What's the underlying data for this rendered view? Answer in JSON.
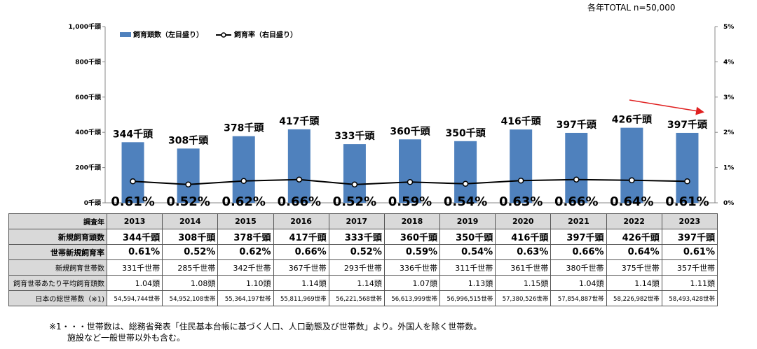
{
  "total_label": "各年TOTAL n=50,000",
  "chart_data": {
    "type": "bar",
    "categories": [
      "2013",
      "2014",
      "2015",
      "2016",
      "2017",
      "2018",
      "2019",
      "2020",
      "2021",
      "2022",
      "2023"
    ],
    "series": [
      {
        "name": "飼育頭数（左目盛り）",
        "type": "bar",
        "axis": "left",
        "values": [
          344,
          308,
          378,
          417,
          333,
          360,
          350,
          416,
          397,
          426,
          397
        ],
        "labels": [
          "344千頭",
          "308千頭",
          "378千頭",
          "417千頭",
          "333千頭",
          "360千頭",
          "350千頭",
          "416千頭",
          "397千頭",
          "426千頭",
          "397千頭"
        ]
      },
      {
        "name": "飼育率（右目盛り）",
        "type": "line",
        "axis": "right",
        "values": [
          0.61,
          0.52,
          0.62,
          0.66,
          0.52,
          0.59,
          0.54,
          0.63,
          0.66,
          0.64,
          0.61
        ],
        "labels": [
          "0.61%",
          "0.52%",
          "0.62%",
          "0.66%",
          "0.52%",
          "0.59%",
          "0.54%",
          "0.63%",
          "0.66%",
          "0.64%",
          "0.61%"
        ]
      }
    ],
    "y_left": {
      "range": [
        0,
        1000
      ],
      "ticks": [
        "0千頭",
        "200千頭",
        "400千頭",
        "600千頭",
        "800千頭",
        "1,000千頭"
      ]
    },
    "y_right": {
      "range": [
        0,
        5
      ],
      "ticks": [
        "0%",
        "1%",
        "2%",
        "3%",
        "4%",
        "5%"
      ]
    },
    "grid": false,
    "legend_position": "top-left",
    "colors": {
      "bar": "#4f81bd",
      "line": "#000000",
      "arrow": "#e02020"
    },
    "annotation": "red-arrow-down-2022-2023"
  },
  "table": {
    "header_label": "調査年",
    "rows": [
      {
        "label": "新規飼育頭数",
        "style": "big",
        "values": [
          "344千頭",
          "308千頭",
          "378千頭",
          "417千頭",
          "333千頭",
          "360千頭",
          "350千頭",
          "416千頭",
          "397千頭",
          "426千頭",
          "397千頭"
        ]
      },
      {
        "label": "世帯新規飼育率",
        "style": "big",
        "values": [
          "0.61%",
          "0.52%",
          "0.62%",
          "0.66%",
          "0.52%",
          "0.59%",
          "0.54%",
          "0.63%",
          "0.66%",
          "0.64%",
          "0.61%"
        ]
      },
      {
        "label": "新規飼育世帯数",
        "style": "norm",
        "values": [
          "331千世帯",
          "285千世帯",
          "342千世帯",
          "367千世帯",
          "293千世帯",
          "336千世帯",
          "311千世帯",
          "361千世帯",
          "380千世帯",
          "375千世帯",
          "357千世帯"
        ]
      },
      {
        "label": "飼育世帯あたり平均飼育頭数",
        "style": "norm",
        "values": [
          "1.04頭",
          "1.08頭",
          "1.10頭",
          "1.14頭",
          "1.14頭",
          "1.07頭",
          "1.13頭",
          "1.15頭",
          "1.04頭",
          "1.14頭",
          "1.11頭"
        ]
      },
      {
        "label": "日本の総世帯数（※1)",
        "style": "small",
        "values": [
          "54,594,744世帯",
          "54,952,108世帯",
          "55,364,197世帯",
          "55,811,969世帯",
          "56,221,568世帯",
          "56,613,999世帯",
          "56,996,515世帯",
          "57,380,526世帯",
          "57,854,887世帯",
          "58,226,982世帯",
          "58,493,428世帯"
        ]
      }
    ]
  },
  "notes": [
    "※1・・・世帯数は、総務省発表「住民基本台帳に基づく人口、人口動態及び世帯数」より。外国人を除く世帯数。",
    "施設など一般世帯以外も含む。"
  ]
}
